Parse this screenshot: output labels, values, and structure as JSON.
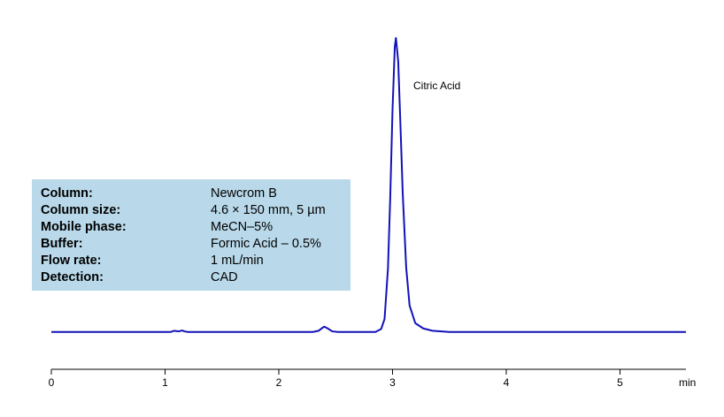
{
  "chart_data": {
    "type": "line",
    "annotation": "Citric Acid",
    "x_unit": "min",
    "xlim": [
      0,
      5.58
    ],
    "xticks": [
      0,
      1,
      2,
      3,
      4,
      5
    ],
    "ylim": [
      -10,
      100
    ],
    "series": [
      {
        "color": "#1212b8",
        "x": [
          0,
          1.05,
          1.08,
          1.1,
          1.12,
          1.15,
          1.17,
          1.2,
          2.3,
          2.35,
          2.38,
          2.4,
          2.43,
          2.47,
          2.52,
          2.85,
          2.9,
          2.93,
          2.96,
          2.98,
          3.0,
          3.02,
          3.03,
          3.05,
          3.07,
          3.09,
          3.12,
          3.15,
          3.2,
          3.27,
          3.35,
          3.5,
          5.58
        ],
        "values": [
          0,
          0,
          0.4,
          0.3,
          0.2,
          0.5,
          0.2,
          0,
          0,
          0.4,
          1.3,
          1.8,
          1.2,
          0.2,
          0,
          0,
          1,
          4.4,
          21.6,
          45.8,
          75.5,
          97,
          100,
          92,
          70,
          47,
          22,
          9,
          3,
          1.2,
          0.4,
          0,
          0
        ]
      }
    ],
    "conditions": [
      {
        "label": "Column:",
        "value": "Newcrom B"
      },
      {
        "label": "Column size:",
        "value": "4.6 × 150 mm, 5 µm"
      },
      {
        "label": "Mobile phase:",
        "value": "MeCN–5%"
      },
      {
        "label": "Buffer:",
        "value": "Formic Acid – 0.5%"
      },
      {
        "label": "Flow rate:",
        "value": "1 mL/min"
      },
      {
        "label": "Detection:",
        "value": "CAD"
      }
    ]
  }
}
